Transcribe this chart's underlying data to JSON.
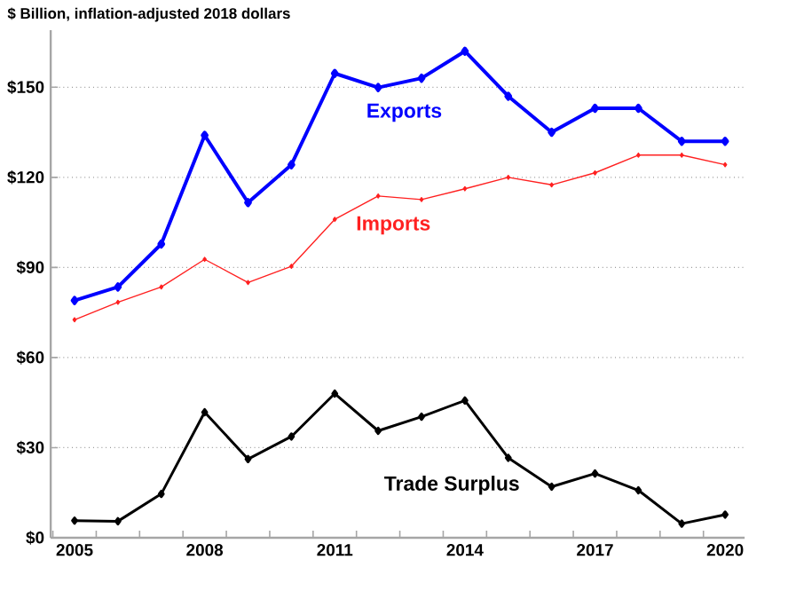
{
  "chart_data": {
    "type": "line",
    "title": "$ Billion, inflation-adjusted 2018 dollars",
    "categories": [
      "2005",
      null,
      null,
      "2008",
      null,
      null,
      "2011",
      null,
      null,
      "2014",
      null,
      null,
      "2017",
      null,
      null,
      "2020"
    ],
    "series": [
      {
        "name": "Exports",
        "color": "#0000ff",
        "values": [
          79,
          83.5,
          97.8,
          134,
          111.6,
          124.2,
          154.6,
          149.9,
          153,
          162,
          147,
          135,
          143,
          143,
          132,
          132
        ]
      },
      {
        "name": "Imports",
        "color": "#ff2020",
        "values": [
          72.6,
          78.4,
          83.5,
          92.7,
          85,
          90.4,
          106,
          113.8,
          112.6,
          116.2,
          120,
          117.5,
          121.5,
          127.4,
          127.4,
          124.2
        ]
      },
      {
        "name": "Trade Surplus",
        "color": "#000000",
        "values": [
          5.7,
          5.5,
          14.6,
          41.8,
          26.2,
          33.7,
          48,
          35.6,
          40.3,
          45.7,
          26.6,
          17,
          21.4,
          15.8,
          4.7,
          7.7
        ]
      }
    ],
    "ylim": [
      0,
      169
    ],
    "yticks": [
      {
        "value": 0,
        "label": "$0"
      },
      {
        "value": 30,
        "label": "$30"
      },
      {
        "value": 60,
        "label": "$60"
      },
      {
        "value": 90,
        "label": "$90"
      },
      {
        "value": 120,
        "label": "$120"
      },
      {
        "value": 150,
        "label": "$150"
      }
    ],
    "grid": "y",
    "marker": "diamond",
    "legend": false
  }
}
